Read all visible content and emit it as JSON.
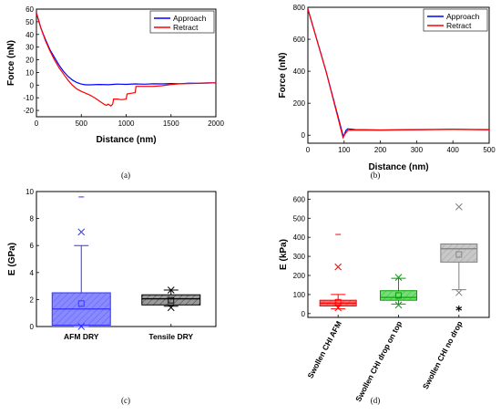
{
  "chart_data": [
    {
      "panel": "(a)",
      "type": "line",
      "xlabel": "Distance (nm)",
      "ylabel": "Force (nN)",
      "xlim": [
        0,
        2000
      ],
      "ylim": [
        -25,
        60
      ],
      "xticks": [
        0,
        500,
        1000,
        1500,
        2000
      ],
      "yticks": [
        -20,
        -10,
        0,
        10,
        20,
        30,
        40,
        50,
        60
      ],
      "legend": "top-right",
      "series": [
        {
          "name": "Approach",
          "color": "#0000ff",
          "x": [
            0,
            50,
            100,
            150,
            200,
            250,
            300,
            350,
            400,
            450,
            500,
            550,
            600,
            700,
            800,
            900,
            1000,
            1100,
            1200,
            1300,
            1400,
            1500,
            1600,
            1700,
            1800,
            1900,
            2000
          ],
          "y": [
            57,
            45,
            36,
            28,
            22,
            16,
            11,
            7,
            4,
            2,
            0.8,
            0.2,
            0.2,
            0.5,
            0.3,
            0.8,
            0.6,
            0.9,
            0.7,
            1.0,
            0.9,
            1.2,
            1.1,
            1.5,
            1.4,
            1.8,
            1.8
          ]
        },
        {
          "name": "Retract",
          "color": "#ff0000",
          "x": [
            0,
            50,
            100,
            150,
            200,
            250,
            300,
            350,
            400,
            450,
            500,
            550,
            600,
            650,
            700,
            750,
            780,
            800,
            830,
            850,
            860,
            900,
            950,
            1000,
            1010,
            1050,
            1100,
            1110,
            1200,
            1300,
            1400,
            1500,
            1600,
            1700,
            1800,
            1900,
            2000
          ],
          "y": [
            57,
            45,
            35,
            27,
            20,
            14,
            9,
            4,
            0,
            -3,
            -5,
            -6.5,
            -8,
            -10,
            -12.5,
            -15,
            -16,
            -15,
            -16.5,
            -15,
            -11,
            -11,
            -11.5,
            -11,
            -7,
            -6.5,
            -6,
            -1,
            -1,
            -1,
            -0.5,
            0.5,
            1,
            1.2,
            1.4,
            1.6,
            1.8
          ]
        }
      ]
    },
    {
      "panel": "(b)",
      "type": "line",
      "xlabel": "Distance (nm)",
      "ylabel": "Force (nN)",
      "xlim": [
        0,
        500
      ],
      "ylim": [
        -50,
        800
      ],
      "xticks": [
        0,
        100,
        200,
        300,
        400,
        500
      ],
      "yticks": [
        0,
        200,
        400,
        600,
        800
      ],
      "legend": "top-right",
      "series": [
        {
          "name": "Approach",
          "color": "#0000ff",
          "x": [
            0,
            50,
            98,
            105,
            110,
            130,
            200,
            300,
            400,
            500
          ],
          "y": [
            790,
            400,
            -10,
            30,
            40,
            35,
            33,
            35,
            37,
            35
          ]
        },
        {
          "name": "Retract",
          "color": "#ff0000",
          "x": [
            0,
            50,
            97,
            103,
            110,
            130,
            200,
            300,
            400,
            500
          ],
          "y": [
            790,
            400,
            -15,
            10,
            30,
            33,
            32,
            34,
            36,
            34
          ]
        }
      ]
    },
    {
      "panel": "(c)",
      "type": "box",
      "ylabel": "E (GPa)",
      "ylim": [
        0,
        10
      ],
      "yticks": [
        0,
        2,
        4,
        6,
        8,
        10
      ],
      "categories": [
        "AFM DRY",
        "Tensile DRY"
      ],
      "boxes": [
        {
          "category": "AFM DRY",
          "color": "#3333ff",
          "fill": "#8a8aff",
          "q1": 0.1,
          "median": 1.3,
          "q3": 2.5,
          "whisker_low": 0.0,
          "whisker_high": 6.0,
          "mean": 1.7,
          "x_marks": [
            7.0,
            0.0
          ],
          "dash_marks": [
            9.6
          ]
        },
        {
          "category": "Tensile DRY",
          "color": "#000000",
          "fill": "#9a9a9a",
          "q1": 1.6,
          "median": 2.05,
          "q3": 2.35,
          "whisker_low": 1.5,
          "whisker_high": 2.7,
          "mean": 1.95,
          "x_marks": [
            2.7,
            1.4
          ],
          "dash_marks": []
        }
      ]
    },
    {
      "panel": "(d)",
      "type": "box",
      "ylabel": "E (kPa)",
      "ylim": [
        -20,
        640
      ],
      "yticks": [
        0,
        100,
        200,
        300,
        400,
        500,
        600
      ],
      "categories": [
        "Swollen CHI AFM",
        "Swollen CHI drop on top",
        "Swollen CHI no drop"
      ],
      "boxes": [
        {
          "category": "Swollen CHI AFM",
          "color": "#ff0000",
          "fill": "#ff7070",
          "q1": 40,
          "median": 55,
          "q3": 70,
          "whisker_low": 25,
          "whisker_high": 100,
          "mean": 60,
          "x_marks": [
            245,
            30
          ],
          "dash_marks": [
            415
          ]
        },
        {
          "category": "Swollen CHI drop on top",
          "color": "#00a000",
          "fill": "#77dd77",
          "q1": 70,
          "median": 85,
          "q3": 120,
          "whisker_low": 50,
          "whisker_high": 185,
          "mean": 95,
          "x_marks": [
            190,
            45
          ],
          "dash_marks": []
        },
        {
          "category": "Swollen CHI no drop",
          "color": "#808080",
          "fill": "#c8c8c8",
          "q1": 270,
          "median": 340,
          "q3": 365,
          "whisker_low": 125,
          "whisker_high": 365,
          "mean": 310,
          "x_marks": [
            560,
            110
          ],
          "dash_marks": [],
          "star_marks": [
            20
          ]
        }
      ]
    }
  ]
}
